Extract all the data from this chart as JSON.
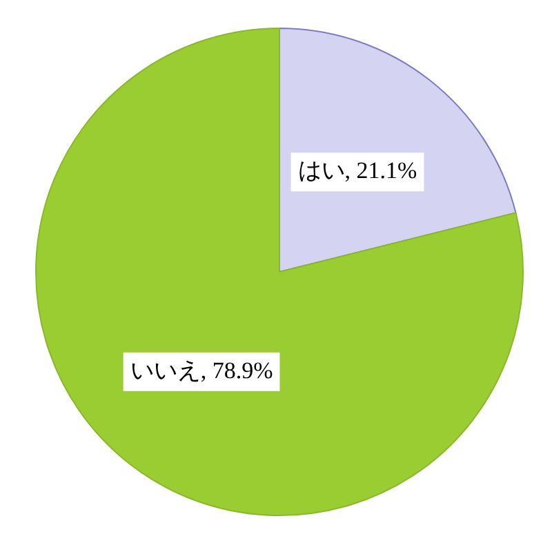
{
  "chart_data": {
    "type": "pie",
    "categories": [
      "はい",
      "いいえ"
    ],
    "values": [
      21.1,
      78.9
    ],
    "colors": [
      "#d4d4f2",
      "#9acd32"
    ],
    "value_labels": [
      "21.1%",
      "78.9%"
    ],
    "legend": false
  }
}
